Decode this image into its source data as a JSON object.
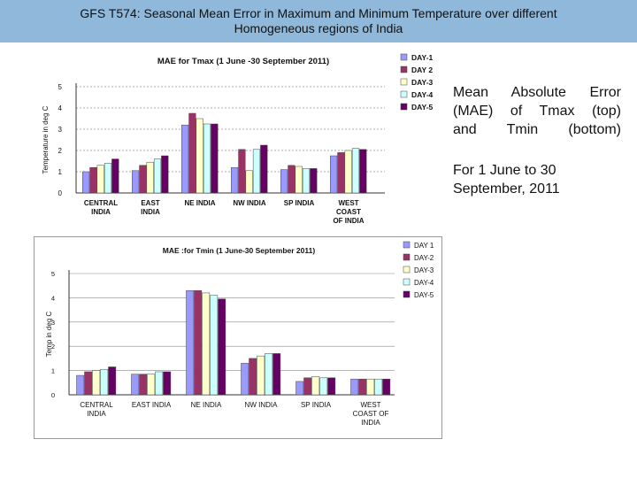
{
  "header": {
    "line1": "GFS T574: Seasonal  Mean Error in Maximum and Minimum  Temperature over different",
    "line2": "Homogeneous regions of India"
  },
  "colors": {
    "header_bg": "#8fb8da",
    "series": [
      "#9999ff",
      "#993366",
      "#ffffcc",
      "#ccffff",
      "#660066"
    ]
  },
  "side_text": {
    "desc_lines": [
      "Mean Absolute Error",
      "(MAE) of Tmax   (top)",
      "and   Tmin   (bottom)"
    ],
    "period_lines": [
      "For 1 June  to 30",
      "September, 2011"
    ]
  },
  "chart_data": [
    {
      "type": "bar",
      "title": "MAE for Tmax (1 June -30 September 2011)",
      "ylabel": "Temperature in deg C",
      "xlabel": "",
      "ylim": [
        0,
        5
      ],
      "yticks": [
        0,
        1,
        2,
        3,
        4,
        5
      ],
      "grid": "dashed horizontal",
      "legend": "top-right",
      "categories": [
        "CENTRAL INDIA",
        "EAST INDIA",
        "NE INDIA",
        "NW INDIA",
        "SP INDIA",
        "WEST COAST OF INDIA"
      ],
      "category_lines": [
        [
          "CENTRAL",
          "INDIA"
        ],
        [
          "EAST",
          "INDIA"
        ],
        [
          "NE INDIA"
        ],
        [
          "NW INDIA"
        ],
        [
          "SP INDIA"
        ],
        [
          "WEST",
          "COAST",
          "OF INDIA"
        ]
      ],
      "series": [
        {
          "name": "DAY-1",
          "values": [
            1.0,
            1.05,
            3.2,
            1.2,
            1.1,
            1.75
          ]
        },
        {
          "name": "DAY 2",
          "values": [
            1.2,
            1.3,
            3.75,
            2.05,
            1.3,
            1.9
          ]
        },
        {
          "name": "DAY-3",
          "values": [
            1.3,
            1.45,
            3.5,
            1.05,
            1.25,
            2.0
          ]
        },
        {
          "name": "DAY-4",
          "values": [
            1.4,
            1.6,
            3.25,
            2.05,
            1.15,
            2.1
          ]
        },
        {
          "name": "DAY-5",
          "values": [
            1.6,
            1.75,
            3.25,
            2.25,
            1.15,
            2.05
          ]
        }
      ]
    },
    {
      "type": "bar",
      "title": "MAE :for Tmin (1 June-30 September 2011)",
      "ylabel": "Temp in deg C",
      "xlabel": "",
      "ylim": [
        0,
        5
      ],
      "yticks": [
        0,
        1,
        2,
        3,
        4,
        5
      ],
      "grid": "horizontal",
      "legend": "right",
      "categories": [
        "CENTRAL INDIA",
        "EAST INDIA",
        "NE INDIA",
        "NW INDIA",
        "SP INDIA",
        "WEST COAST OF INDIA"
      ],
      "category_lines": [
        [
          "CENTRAL",
          "INDIA"
        ],
        [
          "EAST INDIA"
        ],
        [
          "NE INDIA"
        ],
        [
          "NW INDIA"
        ],
        [
          "SP INDIA"
        ],
        [
          "WEST",
          "COAST OF",
          "INDIA"
        ]
      ],
      "series": [
        {
          "name": "DAY 1",
          "values": [
            0.8,
            0.85,
            4.3,
            1.3,
            0.55,
            0.65
          ]
        },
        {
          "name": "DAY-2",
          "values": [
            0.95,
            0.85,
            4.3,
            1.5,
            0.7,
            0.65
          ]
        },
        {
          "name": "DAY-3",
          "values": [
            1.0,
            0.85,
            4.2,
            1.6,
            0.75,
            0.65
          ]
        },
        {
          "name": "DAY-4",
          "values": [
            1.05,
            0.95,
            4.1,
            1.7,
            0.7,
            0.65
          ]
        },
        {
          "name": "DAY-5",
          "values": [
            1.15,
            0.95,
            3.95,
            1.7,
            0.7,
            0.65
          ]
        }
      ]
    }
  ]
}
